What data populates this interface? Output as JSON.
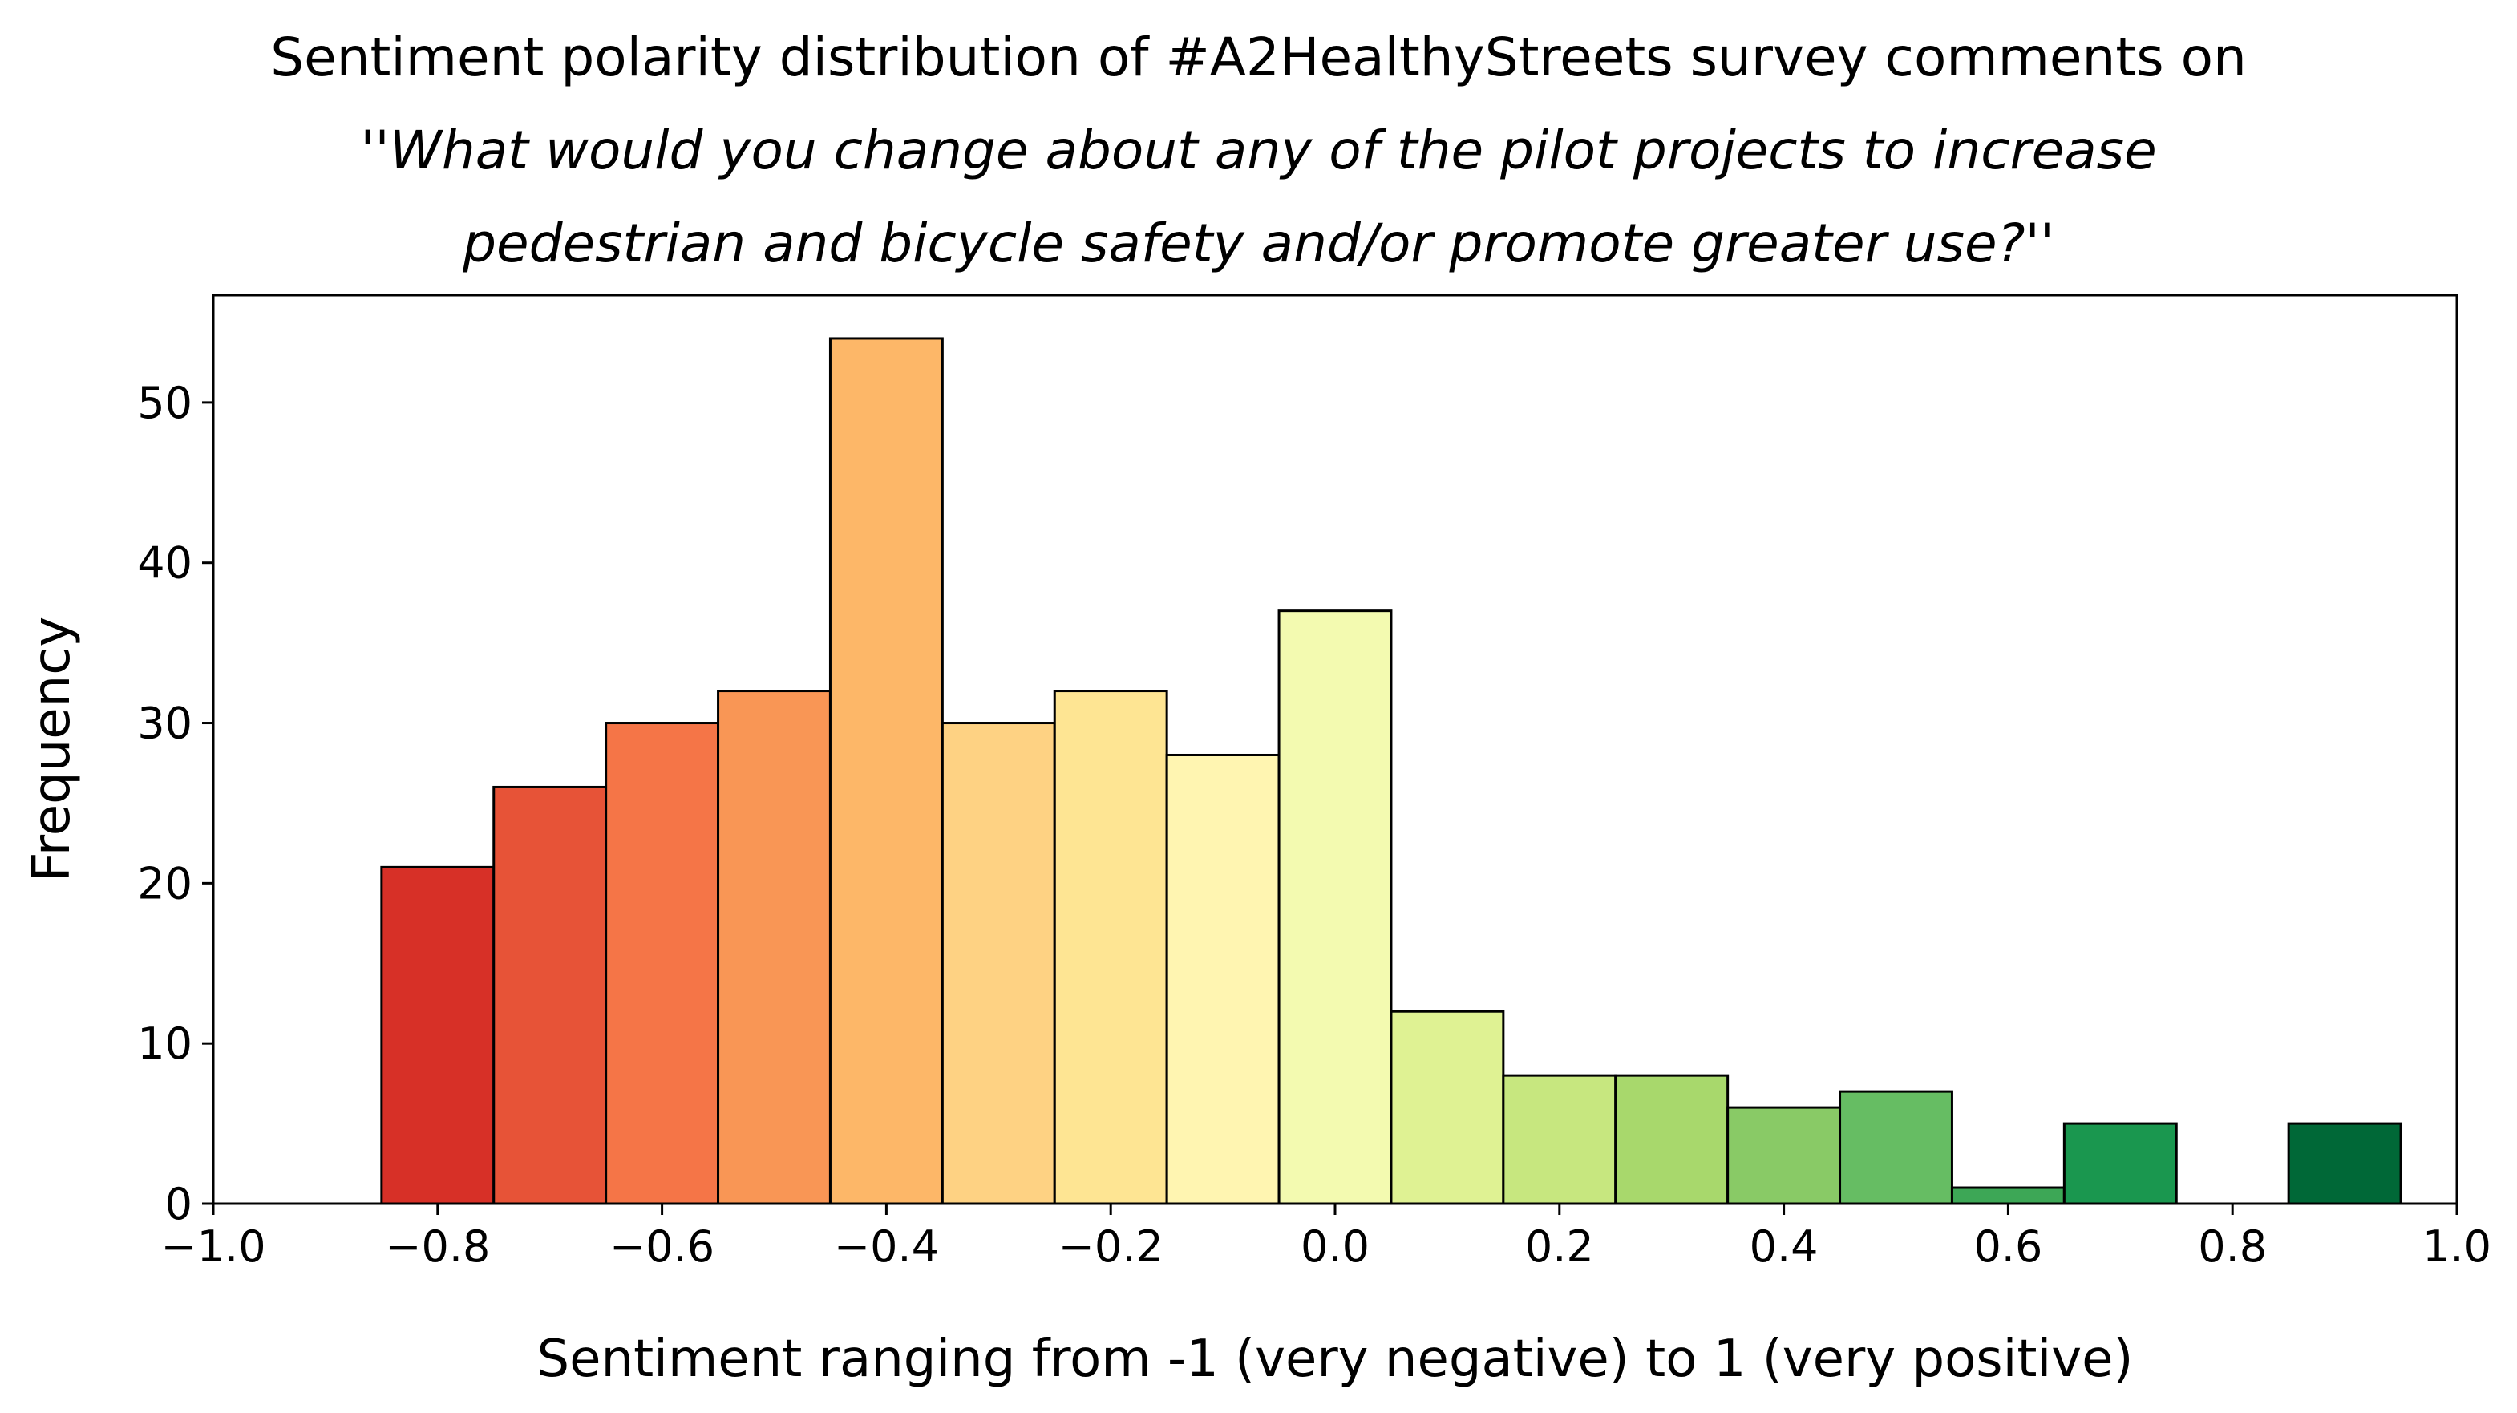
{
  "chart_data": {
    "type": "bar",
    "title": "Sentiment polarity distribution of #A2HealthyStreets survey comments on",
    "subtitle_lines": [
      "''What would you change about any of the pilot projects to increase",
      "pedestrian and bicycle safety and/or promote greater use?''"
    ],
    "xlabel": "Sentiment ranging from -1 (very negative) to 1 (very positive)",
    "ylabel": "Frequency",
    "xlim": [
      -1.0,
      1.0
    ],
    "ylim": [
      0,
      56.7
    ],
    "xticks": [
      -1.0,
      -0.8,
      -0.6,
      -0.4,
      -0.2,
      0.0,
      0.2,
      0.4,
      0.6,
      0.8,
      1.0
    ],
    "xtick_labels": [
      "−1.0",
      "−0.8",
      "−0.6",
      "−0.4",
      "−0.2",
      "0.0",
      "0.2",
      "0.4",
      "0.6",
      "0.8",
      "1.0"
    ],
    "yticks": [
      0,
      10,
      20,
      30,
      40,
      50
    ],
    "ytick_labels": [
      "0",
      "10",
      "20",
      "30",
      "40",
      "50"
    ],
    "bin_width": 0.1,
    "bins": [
      {
        "center": -0.8,
        "count": 21,
        "color": "#d73027"
      },
      {
        "center": -0.7,
        "count": 26,
        "color": "#e75337"
      },
      {
        "center": -0.6,
        "count": 30,
        "color": "#f57547"
      },
      {
        "center": -0.5,
        "count": 32,
        "color": "#f99655"
      },
      {
        "center": -0.4,
        "count": 54,
        "color": "#fdb768"
      },
      {
        "center": -0.3,
        "count": 30,
        "color": "#fed283"
      },
      {
        "center": -0.2,
        "count": 32,
        "color": "#fee593"
      },
      {
        "center": -0.1,
        "count": 28,
        "color": "#fff5b1"
      },
      {
        "center": 0.0,
        "count": 37,
        "color": "#f3fab0"
      },
      {
        "center": 0.1,
        "count": 12,
        "color": "#dff293"
      },
      {
        "center": 0.2,
        "count": 8,
        "color": "#c7e77f"
      },
      {
        "center": 0.3,
        "count": 8,
        "color": "#a8d86c"
      },
      {
        "center": 0.4,
        "count": 6,
        "color": "#89ca66"
      },
      {
        "center": 0.5,
        "count": 7,
        "color": "#66bd63"
      },
      {
        "center": 0.6,
        "count": 1,
        "color": "#3da756"
      },
      {
        "center": 0.7,
        "count": 5,
        "color": "#1a974f"
      },
      {
        "center": 0.8,
        "count": 0,
        "color": "#0e7a3f"
      },
      {
        "center": 0.9,
        "count": 5,
        "color": "#006837"
      }
    ],
    "colormap": "RdYlGn",
    "grid": false,
    "legend": "none"
  }
}
